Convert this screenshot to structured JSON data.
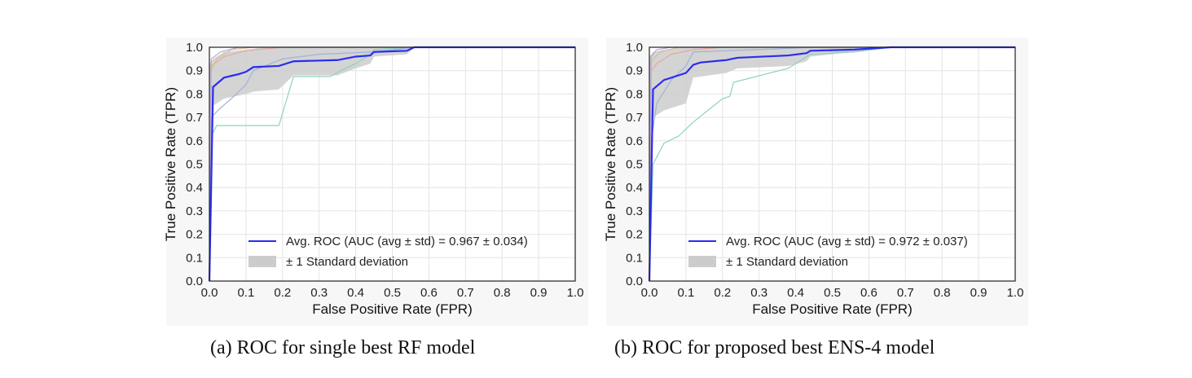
{
  "figure": {
    "captions": {
      "a": "(a) ROC for single best RF model",
      "b": "(b) ROC for proposed best ENS-4 model"
    }
  },
  "chart_data": [
    {
      "type": "line",
      "xlabel": "False Positive Rate (FPR)",
      "ylabel": "True Positive Rate (TPR)",
      "xlim": [
        0,
        1
      ],
      "ylim": [
        0,
        1
      ],
      "xticks": [
        "0.0",
        "0.1",
        "0.2",
        "0.3",
        "0.4",
        "0.5",
        "0.6",
        "0.7",
        "0.8",
        "0.9",
        "1.0"
      ],
      "yticks": [
        "0.0",
        "0.1",
        "0.2",
        "0.3",
        "0.4",
        "0.5",
        "0.6",
        "0.7",
        "0.8",
        "0.9",
        "1.0"
      ],
      "grid": true,
      "legend_position": "bottom-right",
      "legend": {
        "avg_label": "Avg. ROC (AUC (avg ± std) = 0.967 ± 0.034)",
        "band_label": "± 1 Standard deviation"
      },
      "colors": {
        "avg": "#2a2df0",
        "band": "#cccccc"
      },
      "avg_roc": [
        [
          0,
          0
        ],
        [
          0.01,
          0.83
        ],
        [
          0.04,
          0.87
        ],
        [
          0.08,
          0.885
        ],
        [
          0.1,
          0.895
        ],
        [
          0.12,
          0.915
        ],
        [
          0.19,
          0.92
        ],
        [
          0.23,
          0.94
        ],
        [
          0.35,
          0.945
        ],
        [
          0.4,
          0.96
        ],
        [
          0.44,
          0.965
        ],
        [
          0.45,
          0.98
        ],
        [
          0.54,
          0.985
        ],
        [
          0.56,
          1.0
        ],
        [
          1.0,
          1.0
        ]
      ],
      "std_upper": [
        [
          0,
          0.93
        ],
        [
          0.01,
          0.95
        ],
        [
          0.04,
          0.98
        ],
        [
          0.1,
          0.99
        ],
        [
          0.15,
          1.0
        ],
        [
          1.0,
          1.0
        ]
      ],
      "std_lower": [
        [
          0,
          0.72
        ],
        [
          0.01,
          0.75
        ],
        [
          0.04,
          0.78
        ],
        [
          0.1,
          0.8
        ],
        [
          0.12,
          0.81
        ],
        [
          0.19,
          0.82
        ],
        [
          0.23,
          0.88
        ],
        [
          0.35,
          0.88
        ],
        [
          0.4,
          0.91
        ],
        [
          0.44,
          0.93
        ],
        [
          0.45,
          0.96
        ],
        [
          0.54,
          0.97
        ],
        [
          0.56,
          1.0
        ],
        [
          1.0,
          1.0
        ]
      ],
      "folds": [
        {
          "color": "#8fd0c0",
          "points": [
            [
              0,
              0
            ],
            [
              0.005,
              0.62
            ],
            [
              0.02,
              0.665
            ],
            [
              0.19,
              0.665
            ],
            [
              0.23,
              0.875
            ],
            [
              0.33,
              0.875
            ],
            [
              0.36,
              0.9
            ],
            [
              0.4,
              0.93
            ],
            [
              0.44,
              0.97
            ],
            [
              0.45,
              0.99
            ],
            [
              0.56,
              1.0
            ],
            [
              1.0,
              1.0
            ]
          ]
        },
        {
          "color": "#9fb3d8",
          "points": [
            [
              0,
              0
            ],
            [
              0.005,
              0.7
            ],
            [
              0.03,
              0.74
            ],
            [
              0.06,
              0.78
            ],
            [
              0.1,
              0.84
            ],
            [
              0.12,
              0.9
            ],
            [
              0.2,
              0.95
            ],
            [
              0.3,
              0.97
            ],
            [
              0.45,
              0.98
            ],
            [
              0.56,
              1.0
            ],
            [
              1.0,
              1.0
            ]
          ]
        },
        {
          "color": "#e8a8a0",
          "points": [
            [
              0,
              0
            ],
            [
              0.005,
              0.92
            ],
            [
              0.04,
              0.96
            ],
            [
              0.1,
              0.985
            ],
            [
              0.2,
              1.0
            ],
            [
              1.0,
              1.0
            ]
          ]
        },
        {
          "color": "#d8c090",
          "points": [
            [
              0,
              0
            ],
            [
              0.005,
              0.9
            ],
            [
              0.02,
              0.95
            ],
            [
              0.06,
              0.99
            ],
            [
              0.12,
              1.0
            ],
            [
              1.0,
              1.0
            ]
          ]
        },
        {
          "color": "#b8a8d8",
          "points": [
            [
              0,
              0
            ],
            [
              0.005,
              0.95
            ],
            [
              0.03,
              0.98
            ],
            [
              0.08,
              1.0
            ],
            [
              1.0,
              1.0
            ]
          ]
        }
      ]
    },
    {
      "type": "line",
      "xlabel": "False Positive Rate (FPR)",
      "ylabel": "True Positive Rate (TPR)",
      "xlim": [
        0,
        1
      ],
      "ylim": [
        0,
        1
      ],
      "xticks": [
        "0.0",
        "0.1",
        "0.2",
        "0.3",
        "0.4",
        "0.5",
        "0.6",
        "0.7",
        "0.8",
        "0.9",
        "1.0"
      ],
      "yticks": [
        "0.0",
        "0.1",
        "0.2",
        "0.3",
        "0.4",
        "0.5",
        "0.6",
        "0.7",
        "0.8",
        "0.9",
        "1.0"
      ],
      "grid": true,
      "legend_position": "bottom-right",
      "legend": {
        "avg_label": "Avg. ROC (AUC (avg ± std) = 0.972 ± 0.037)",
        "band_label": "± 1 Standard deviation"
      },
      "colors": {
        "avg": "#2a2df0",
        "band": "#cccccc"
      },
      "avg_roc": [
        [
          0,
          0
        ],
        [
          0.01,
          0.82
        ],
        [
          0.04,
          0.86
        ],
        [
          0.09,
          0.885
        ],
        [
          0.1,
          0.89
        ],
        [
          0.12,
          0.925
        ],
        [
          0.14,
          0.935
        ],
        [
          0.21,
          0.945
        ],
        [
          0.24,
          0.955
        ],
        [
          0.38,
          0.965
        ],
        [
          0.43,
          0.975
        ],
        [
          0.44,
          0.985
        ],
        [
          0.56,
          0.99
        ],
        [
          0.66,
          1.0
        ],
        [
          1.0,
          1.0
        ]
      ],
      "std_upper": [
        [
          0,
          0.96
        ],
        [
          0.01,
          0.98
        ],
        [
          0.04,
          0.99
        ],
        [
          0.1,
          1.0
        ],
        [
          1.0,
          1.0
        ]
      ],
      "std_lower": [
        [
          0,
          0.66
        ],
        [
          0.01,
          0.7
        ],
        [
          0.04,
          0.73
        ],
        [
          0.1,
          0.76
        ],
        [
          0.12,
          0.87
        ],
        [
          0.21,
          0.89
        ],
        [
          0.24,
          0.91
        ],
        [
          0.38,
          0.92
        ],
        [
          0.43,
          0.94
        ],
        [
          0.44,
          0.96
        ],
        [
          0.56,
          0.98
        ],
        [
          0.66,
          1.0
        ],
        [
          1.0,
          1.0
        ]
      ],
      "folds": [
        {
          "color": "#8fd0c0",
          "points": [
            [
              0,
              0
            ],
            [
              0.01,
              0.5
            ],
            [
              0.04,
              0.59
            ],
            [
              0.08,
              0.62
            ],
            [
              0.12,
              0.68
            ],
            [
              0.2,
              0.78
            ],
            [
              0.22,
              0.79
            ],
            [
              0.23,
              0.85
            ],
            [
              0.38,
              0.91
            ],
            [
              0.44,
              0.97
            ],
            [
              0.56,
              0.98
            ],
            [
              0.66,
              1.0
            ],
            [
              1.0,
              1.0
            ]
          ]
        },
        {
          "color": "#9fb3d8",
          "points": [
            [
              0,
              0
            ],
            [
              0.005,
              0.6
            ],
            [
              0.02,
              0.76
            ],
            [
              0.06,
              0.86
            ],
            [
              0.1,
              0.92
            ],
            [
              0.12,
              0.98
            ],
            [
              0.3,
              0.99
            ],
            [
              0.45,
              1.0
            ],
            [
              1.0,
              1.0
            ]
          ]
        },
        {
          "color": "#e8a8a0",
          "points": [
            [
              0,
              0
            ],
            [
              0.005,
              0.9
            ],
            [
              0.02,
              0.93
            ],
            [
              0.06,
              0.97
            ],
            [
              0.12,
              0.99
            ],
            [
              0.2,
              1.0
            ],
            [
              1.0,
              1.0
            ]
          ]
        },
        {
          "color": "#d8c090",
          "points": [
            [
              0,
              0
            ],
            [
              0.005,
              0.94
            ],
            [
              0.03,
              0.98
            ],
            [
              0.08,
              1.0
            ],
            [
              1.0,
              1.0
            ]
          ]
        },
        {
          "color": "#b8a8d8",
          "points": [
            [
              0,
              0
            ],
            [
              0.005,
              0.96
            ],
            [
              0.02,
              0.99
            ],
            [
              0.06,
              1.0
            ],
            [
              1.0,
              1.0
            ]
          ]
        }
      ]
    }
  ]
}
